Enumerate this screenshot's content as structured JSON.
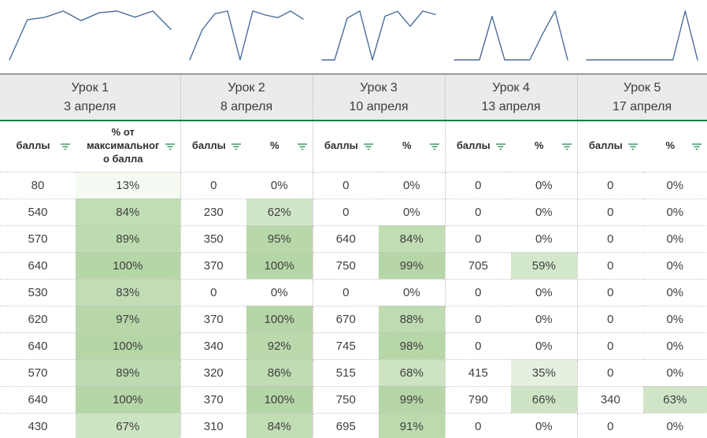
{
  "colors": {
    "sparkline": "#4a6d9b",
    "header_bg": "#ebebeb",
    "green_line": "#0e8043",
    "filter_icon": "#0e8043",
    "heat_green_max": "#b5d6a6"
  },
  "table": {
    "lessons": [
      {
        "title": "Урок 1",
        "date": "3 апреля",
        "score_label": "баллы",
        "pct_label": "% от максимального балла"
      },
      {
        "title": "Урок 2",
        "date": "8 апреля",
        "score_label": "баллы",
        "pct_label": "%"
      },
      {
        "title": "Урок 3",
        "date": "10 апреля",
        "score_label": "баллы",
        "pct_label": "%"
      },
      {
        "title": "Урок 4",
        "date": "13 апреля",
        "score_label": "баллы",
        "pct_label": "%"
      },
      {
        "title": "Урок 5",
        "date": "17 апреля",
        "score_label": "баллы",
        "pct_label": "%"
      }
    ],
    "rows": [
      [
        [
          "80",
          "13%"
        ],
        [
          "0",
          "0%"
        ],
        [
          "0",
          "0%"
        ],
        [
          "0",
          "0%"
        ],
        [
          "0",
          "0%"
        ]
      ],
      [
        [
          "540",
          "84%"
        ],
        [
          "230",
          "62%"
        ],
        [
          "0",
          "0%"
        ],
        [
          "0",
          "0%"
        ],
        [
          "0",
          "0%"
        ]
      ],
      [
        [
          "570",
          "89%"
        ],
        [
          "350",
          "95%"
        ],
        [
          "640",
          "84%"
        ],
        [
          "0",
          "0%"
        ],
        [
          "0",
          "0%"
        ]
      ],
      [
        [
          "640",
          "100%"
        ],
        [
          "370",
          "100%"
        ],
        [
          "750",
          "99%"
        ],
        [
          "705",
          "59%"
        ],
        [
          "0",
          "0%"
        ]
      ],
      [
        [
          "530",
          "83%"
        ],
        [
          "0",
          "0%"
        ],
        [
          "0",
          "0%"
        ],
        [
          "0",
          "0%"
        ],
        [
          "0",
          "0%"
        ]
      ],
      [
        [
          "620",
          "97%"
        ],
        [
          "370",
          "100%"
        ],
        [
          "670",
          "88%"
        ],
        [
          "0",
          "0%"
        ],
        [
          "0",
          "0%"
        ]
      ],
      [
        [
          "640",
          "100%"
        ],
        [
          "340",
          "92%"
        ],
        [
          "745",
          "98%"
        ],
        [
          "0",
          "0%"
        ],
        [
          "0",
          "0%"
        ]
      ],
      [
        [
          "570",
          "89%"
        ],
        [
          "320",
          "86%"
        ],
        [
          "515",
          "68%"
        ],
        [
          "415",
          "35%"
        ],
        [
          "0",
          "0%"
        ]
      ],
      [
        [
          "640",
          "100%"
        ],
        [
          "370",
          "100%"
        ],
        [
          "750",
          "99%"
        ],
        [
          "790",
          "66%"
        ],
        [
          "340",
          "63%"
        ]
      ],
      [
        [
          "430",
          "67%"
        ],
        [
          "310",
          "84%"
        ],
        [
          "695",
          "91%"
        ],
        [
          "0",
          "0%"
        ],
        [
          "0",
          "0%"
        ]
      ]
    ]
  },
  "chart_data": [
    {
      "type": "line",
      "name": "Урок 1 баллы sparkline",
      "values": [
        80,
        540,
        570,
        640,
        530,
        620,
        640,
        570,
        640,
        430
      ]
    },
    {
      "type": "line",
      "name": "Урок 2 баллы sparkline",
      "values": [
        0,
        230,
        350,
        370,
        0,
        370,
        340,
        320,
        370,
        310
      ]
    },
    {
      "type": "line",
      "name": "Урок 3 баллы sparkline",
      "values": [
        0,
        0,
        640,
        750,
        0,
        670,
        745,
        515,
        750,
        695
      ]
    },
    {
      "type": "line",
      "name": "Урок 4 баллы sparkline",
      "values": [
        0,
        0,
        0,
        705,
        0,
        0,
        0,
        415,
        790,
        0
      ]
    },
    {
      "type": "line",
      "name": "Урок 5 баллы sparkline",
      "values": [
        0,
        0,
        0,
        0,
        0,
        0,
        0,
        0,
        340,
        0
      ]
    }
  ]
}
